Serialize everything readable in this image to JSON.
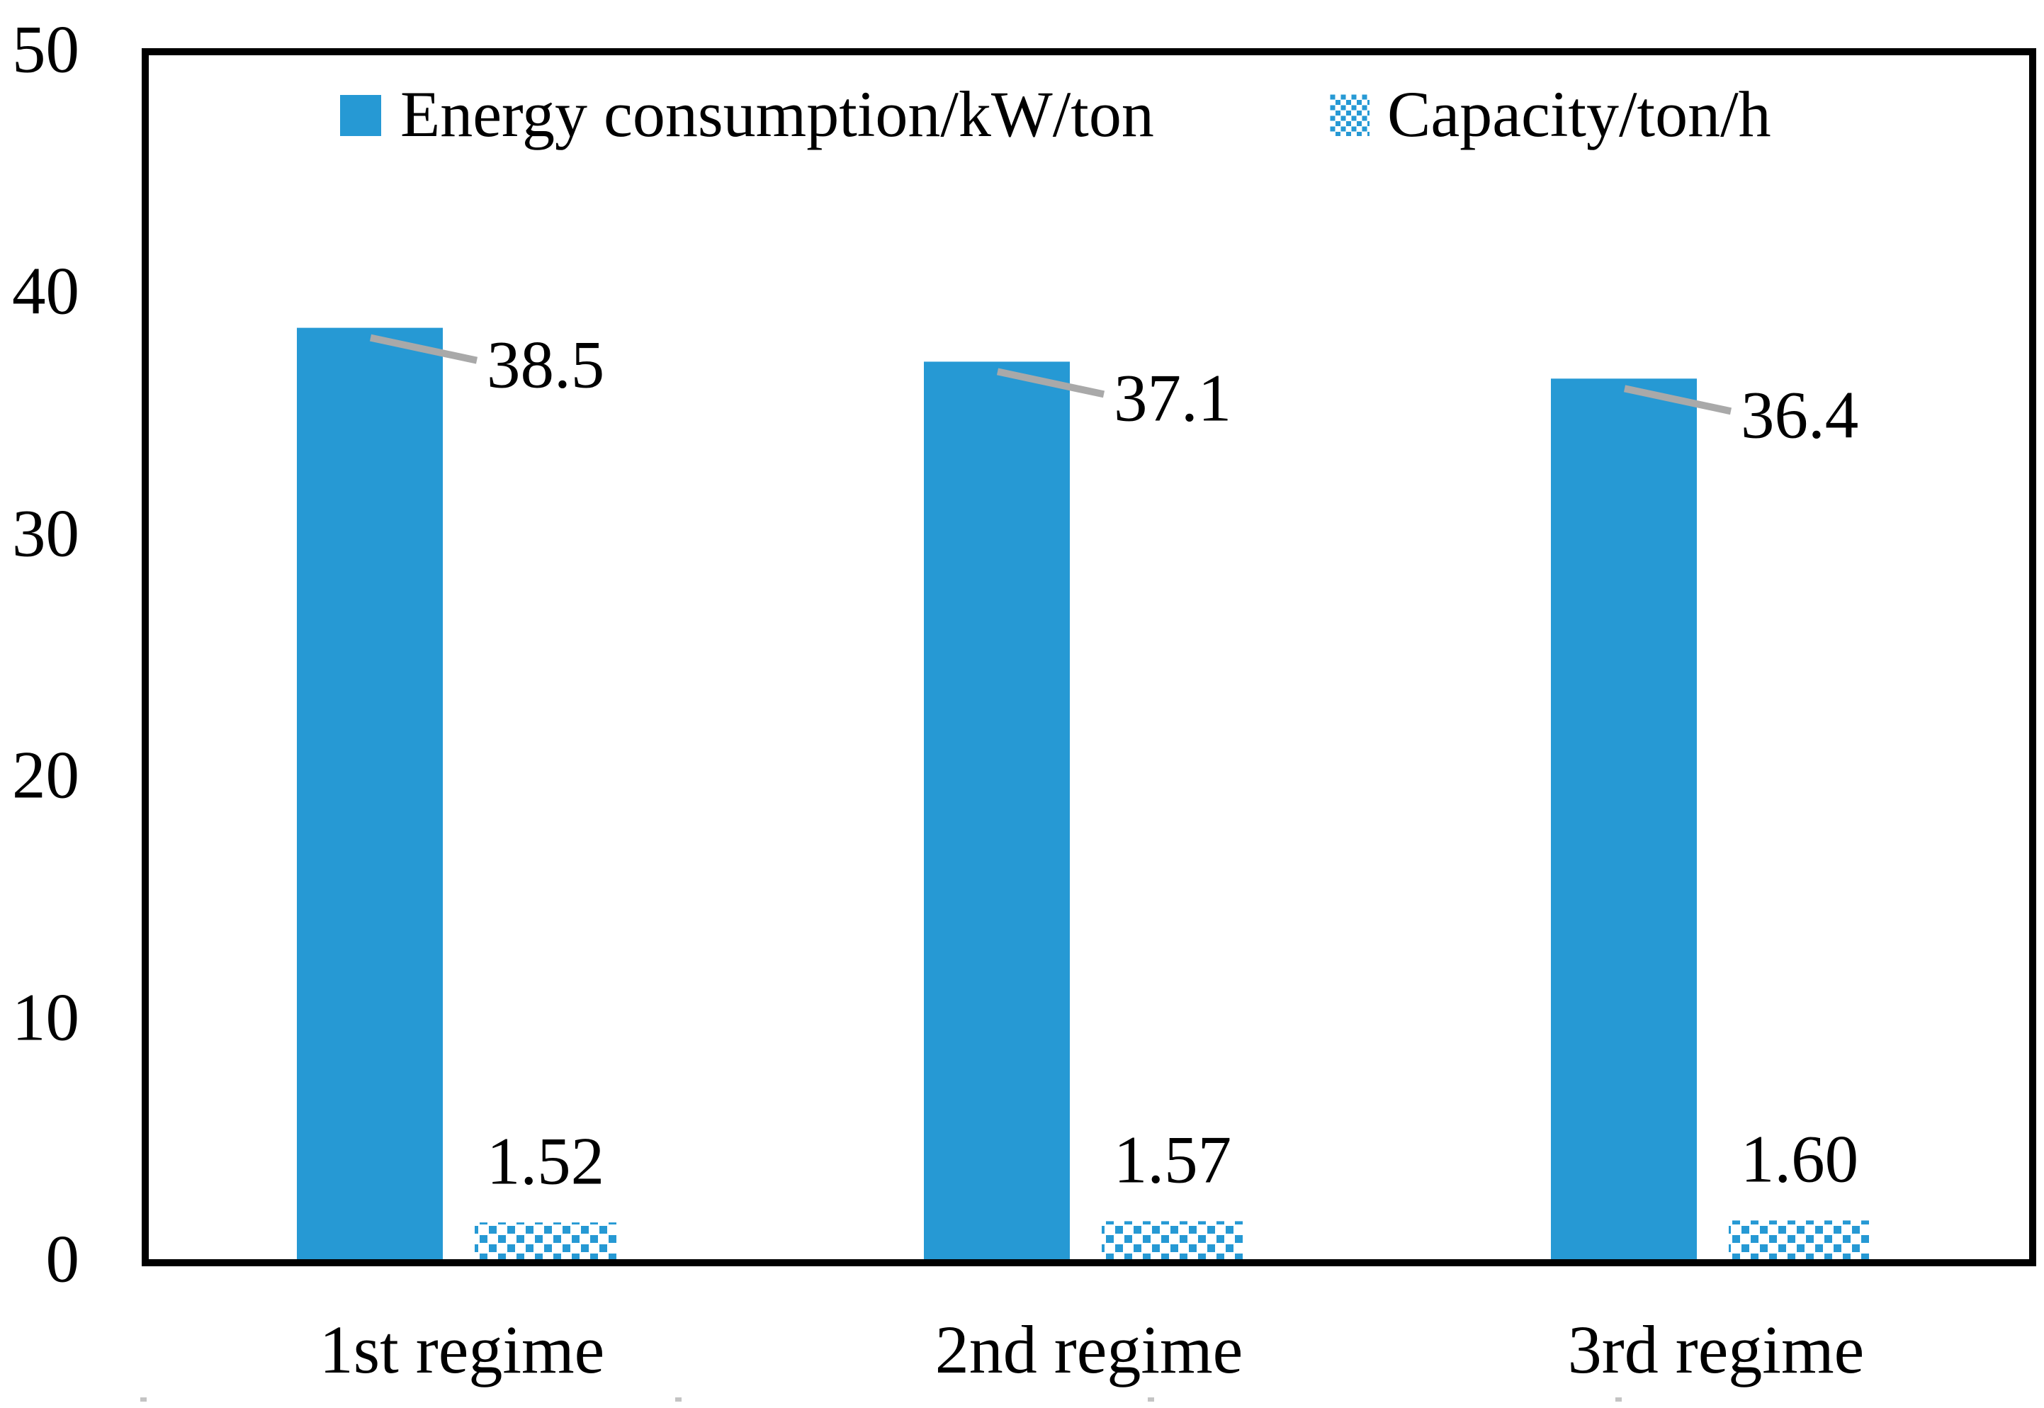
{
  "chart_data": {
    "type": "bar",
    "categories": [
      "1st regime",
      "2nd regime",
      "3rd regime"
    ],
    "series": [
      {
        "name": "Energy consumption/kW/ton",
        "values": [
          38.5,
          37.1,
          36.4
        ],
        "labels": [
          "38.5",
          "37.1",
          "36.4"
        ],
        "style": "solid",
        "color": "#2699D4"
      },
      {
        "name": "Capacity/ton/h",
        "values": [
          1.52,
          1.57,
          1.6
        ],
        "labels": [
          "1.52",
          "1.57",
          "1.60"
        ],
        "style": "dotted-pattern",
        "color": "#2699D4"
      }
    ],
    "ylim": [
      0,
      50
    ],
    "yticks": [
      "50",
      "40",
      "30",
      "20",
      "10",
      "0"
    ],
    "xlabel": "",
    "ylabel": "",
    "grid": false,
    "legend_position": "top-inside",
    "leader_line_color": "#a9a9a9",
    "axis_color": "#000000",
    "background_color": "#ffffff"
  }
}
